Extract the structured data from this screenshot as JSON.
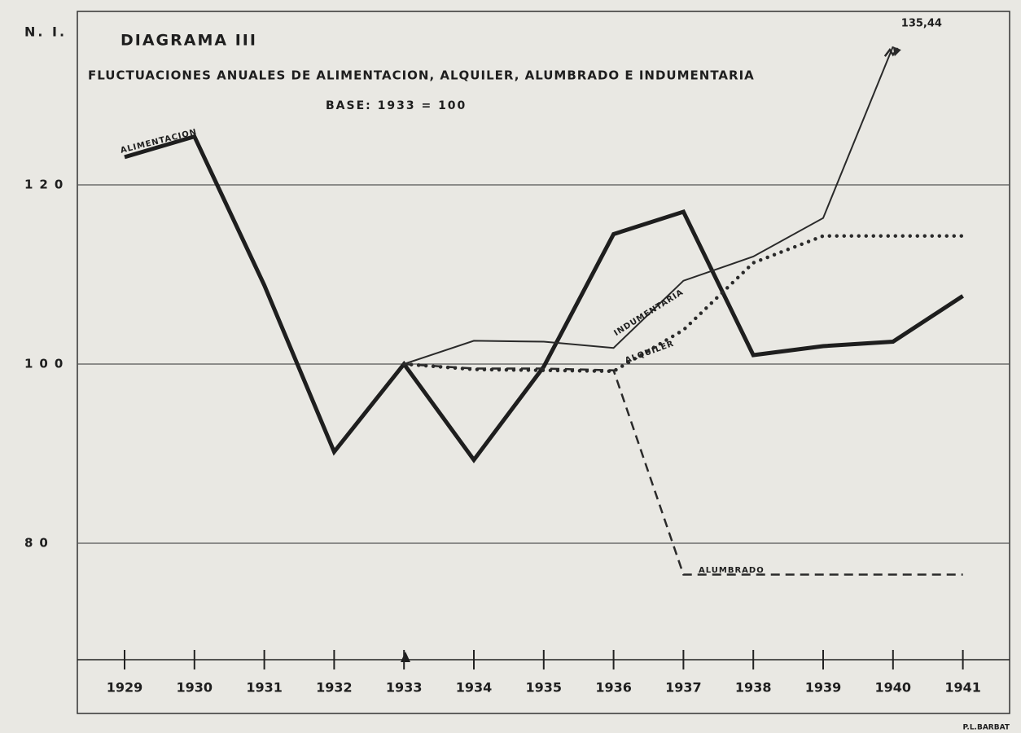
{
  "chart_data": {
    "type": "line",
    "y_axis_label": "N. I.",
    "title": "DIAGRAMA III",
    "subtitle": "FLUCTUACIONES ANUALES DE ALIMENTACION, ALQUILER, ALUMBRADO E INDUMENTARIA",
    "note": "BASE: 1933 = 100",
    "credit": "P.L.BARBAT",
    "categories": [
      "1929",
      "1930",
      "1931",
      "1932",
      "1933",
      "1934",
      "1935",
      "1936",
      "1937",
      "1938",
      "1939",
      "1940",
      "1941"
    ],
    "series": [
      {
        "name": "ALIMENTACION",
        "color": "#1e1e1e",
        "style": "thick",
        "values": [
          123.1,
          125.4,
          108.8,
          90.2,
          100,
          89.3,
          99.7,
          114.5,
          117,
          101,
          102,
          102.5,
          107.6
        ]
      },
      {
        "name": "INDUMENTARIA",
        "color": "#2a2a2a",
        "style": "thin",
        "values": [
          null,
          null,
          null,
          null,
          100,
          102.6,
          102.5,
          101.8,
          109.3,
          112,
          116.3,
          135.44,
          null
        ],
        "value_labels": [
          null,
          null,
          null,
          null,
          null,
          null,
          null,
          null,
          null,
          null,
          null,
          "135,44",
          null
        ]
      },
      {
        "name": "ALQUILER",
        "color": "#2a2a2a",
        "style": "dotted",
        "values": [
          null,
          null,
          null,
          null,
          100,
          99.4,
          99.3,
          99.2,
          103.8,
          111.3,
          114.3,
          114.3,
          114.3
        ]
      },
      {
        "name": "ALUMBRADO",
        "color": "#2a2a2a",
        "style": "dashed",
        "values": [
          null,
          null,
          null,
          null,
          100,
          99.5,
          99.5,
          99.3,
          76.5,
          76.5,
          76.5,
          76.5,
          76.5
        ]
      }
    ],
    "ylim": [
      67,
      139
    ],
    "yticks": [
      80,
      100,
      120
    ],
    "grid": true
  }
}
